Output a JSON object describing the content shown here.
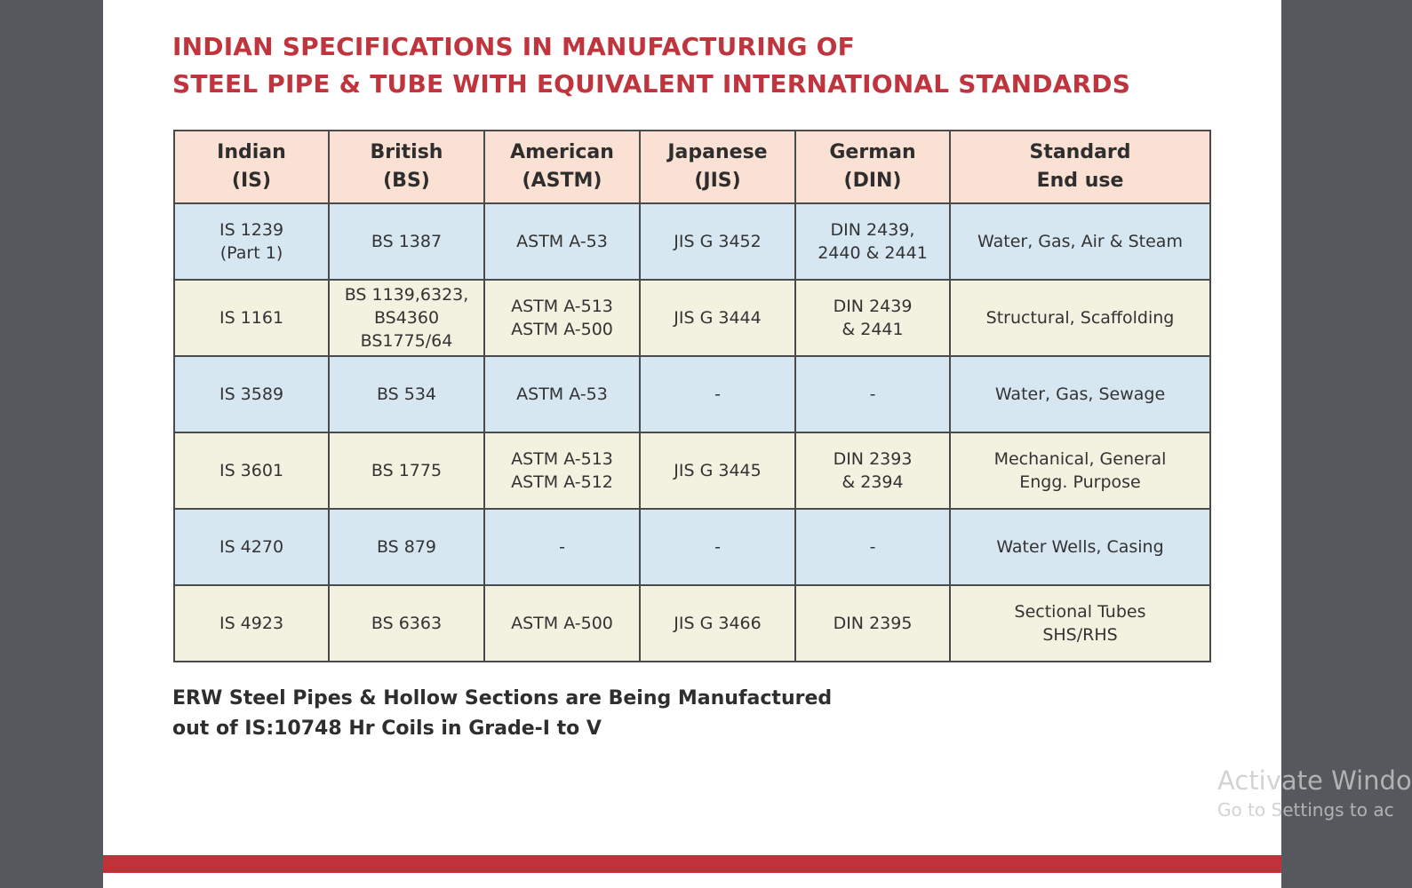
{
  "title": {
    "line1": "INDIAN SPECIFICATIONS IN MANUFACTURING OF",
    "line2": "STEEL PIPE & TUBE WITH EQUIVALENT INTERNATIONAL STANDARDS"
  },
  "table": {
    "headers": [
      "Indian\n(IS)",
      "British\n(BS)",
      "American\n(ASTM)",
      "Japanese\n(JIS)",
      "German\n(DIN)",
      "Standard\nEnd use"
    ],
    "rows": [
      [
        "IS 1239\n(Part 1)",
        "BS 1387",
        "ASTM A-53",
        "JIS G 3452",
        "DIN 2439,\n2440 & 2441",
        "Water, Gas, Air & Steam"
      ],
      [
        "IS 1161",
        "BS 1139,6323,\nBS4360\nBS1775/64",
        "ASTM A-513\nASTM A-500",
        "JIS G 3444",
        "DIN 2439\n& 2441",
        "Structural, Scaffolding"
      ],
      [
        "IS 3589",
        "BS 534",
        "ASTM A-53",
        "-",
        "-",
        "Water, Gas, Sewage"
      ],
      [
        "IS 3601",
        "BS 1775",
        "ASTM A-513\nASTM A-512",
        "JIS G 3445",
        "DIN 2393\n& 2394",
        "Mechanical, General\nEngg. Purpose"
      ],
      [
        "IS 4270",
        "BS 879",
        "-",
        "-",
        "-",
        "Water Wells, Casing"
      ],
      [
        "IS 4923",
        "BS 6363",
        "ASTM A-500",
        "JIS G 3466",
        "DIN 2395",
        "Sectional Tubes\nSHS/RHS"
      ]
    ]
  },
  "note": {
    "line1": "ERW Steel Pipes & Hollow Sections are Being Manufactured",
    "line2": "out of IS:10748 Hr Coils in Grade-I to V"
  },
  "watermark": {
    "line1": "Activate Windo",
    "line2": "Go to Settings to ac"
  },
  "colors": {
    "title": "#c0343d",
    "header_bg": "#fbe0d4",
    "row_blue": "#d6e7f2",
    "row_cream": "#f3f1df",
    "footer_bar": "#c1313a"
  }
}
